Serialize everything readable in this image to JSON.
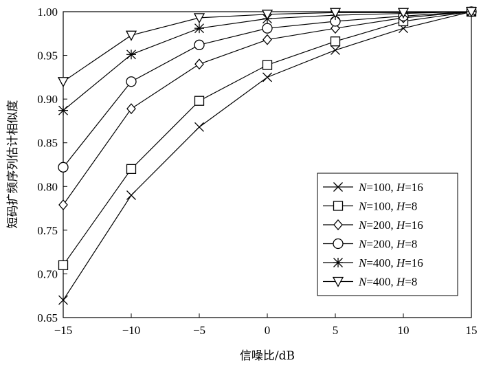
{
  "chart_data": {
    "type": "line",
    "xlabel": "信噪比/dB",
    "ylabel": "短码扩频序列估计相似度",
    "xlim": [
      -15,
      15
    ],
    "ylim": [
      0.65,
      1.0
    ],
    "xticks": [
      -15,
      -10,
      -5,
      0,
      5,
      10,
      15
    ],
    "xtick_labels": [
      "−15",
      "−10",
      "−5",
      "0",
      "5",
      "10",
      "15"
    ],
    "yticks": [
      0.65,
      0.7,
      0.75,
      0.8,
      0.85,
      0.9,
      0.95,
      1.0
    ],
    "ytick_labels": [
      "0.65",
      "0.70",
      "0.75",
      "0.80",
      "0.85",
      "0.90",
      "0.95",
      "1.00"
    ],
    "grid": false,
    "legend_position": "bottom-right",
    "x": [
      -15,
      -10,
      -5,
      0,
      5,
      10,
      15
    ],
    "series": [
      {
        "name": "N=100, H=16",
        "N": "100",
        "H": "16",
        "marker": "x",
        "values": [
          0.67,
          0.79,
          0.868,
          0.925,
          0.956,
          0.981,
          1.0
        ]
      },
      {
        "name": "N=100, H=8",
        "N": "100",
        "H": "8",
        "marker": "square",
        "values": [
          0.71,
          0.82,
          0.898,
          0.939,
          0.966,
          0.989,
          1.0
        ]
      },
      {
        "name": "N=200, H=16",
        "N": "200",
        "H": "16",
        "marker": "diamond",
        "values": [
          0.779,
          0.889,
          0.94,
          0.968,
          0.981,
          0.993,
          1.0
        ]
      },
      {
        "name": "N=200, H=8",
        "N": "200",
        "H": "8",
        "marker": "circle",
        "values": [
          0.822,
          0.92,
          0.962,
          0.981,
          0.989,
          0.995,
          1.0
        ]
      },
      {
        "name": "N=400, H=16",
        "N": "400",
        "H": "16",
        "marker": "asterisk",
        "values": [
          0.887,
          0.951,
          0.981,
          0.992,
          0.996,
          0.998,
          1.0
        ]
      },
      {
        "name": "N=400, H=8",
        "N": "400",
        "H": "8",
        "marker": "triangle",
        "values": [
          0.92,
          0.973,
          0.993,
          0.997,
          0.999,
          0.999,
          1.0
        ]
      }
    ]
  }
}
